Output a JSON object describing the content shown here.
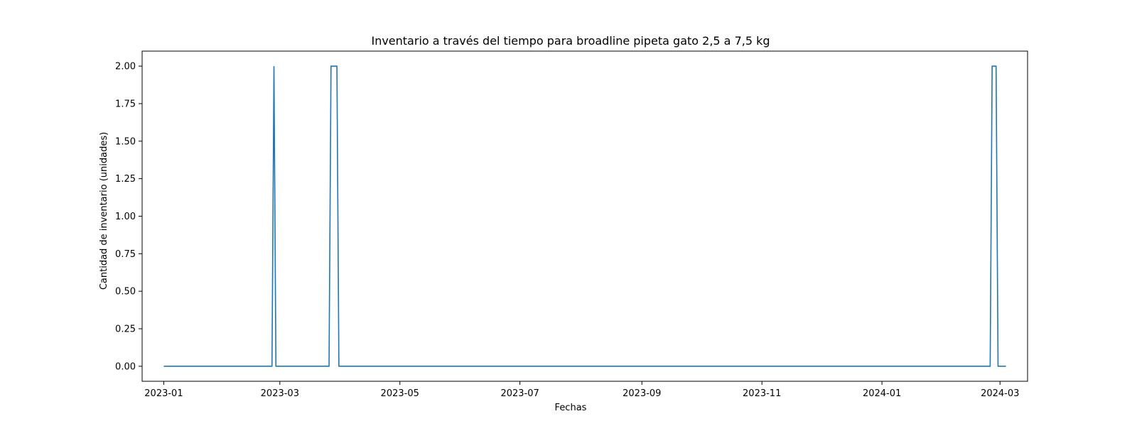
{
  "chart_data": {
    "type": "line",
    "title": "Inventario a través del tiempo para broadline pipeta gato 2,5 a 7,5 kg",
    "xlabel": "Fechas",
    "ylabel": "Cantidad de inventario (unidades)",
    "xlim": [
      "2022-12-21",
      "2024-03-15"
    ],
    "ylim": [
      -0.1,
      2.1
    ],
    "x_ticks": [
      "2023-01-01",
      "2023-03-01",
      "2023-05-01",
      "2023-07-01",
      "2023-09-01",
      "2023-11-01",
      "2024-01-01",
      "2024-03-01"
    ],
    "x_tick_labels": [
      "2023-01",
      "2023-03",
      "2023-05",
      "2023-07",
      "2023-09",
      "2023-11",
      "2024-01",
      "2024-03"
    ],
    "y_ticks": [
      0.0,
      0.25,
      0.5,
      0.75,
      1.0,
      1.25,
      1.5,
      1.75,
      2.0
    ],
    "y_tick_labels": [
      "0.00",
      "0.25",
      "0.50",
      "0.75",
      "1.00",
      "1.25",
      "1.50",
      "1.75",
      "2.00"
    ],
    "grid": false,
    "line_color": "#1f77b4",
    "series": [
      {
        "x": [
          "2023-01-01",
          "2023-02-25",
          "2023-02-26",
          "2023-02-27",
          "2023-03-26",
          "2023-03-27",
          "2023-03-30",
          "2023-03-31",
          "2024-02-25",
          "2024-02-26",
          "2024-02-28",
          "2024-02-29",
          "2024-03-04"
        ],
        "y": [
          0,
          0,
          2,
          0,
          0,
          2,
          2,
          0,
          0,
          2,
          2,
          0,
          0
        ]
      }
    ]
  }
}
